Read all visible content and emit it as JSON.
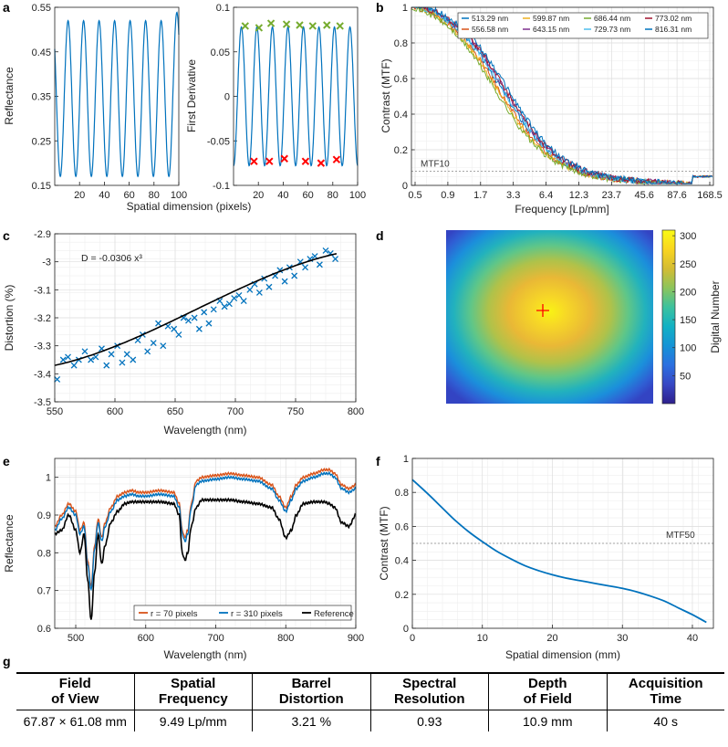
{
  "panel_labels": {
    "a": "a",
    "b": "b",
    "c": "c",
    "d": "d",
    "e": "e",
    "f": "f",
    "g": "g"
  },
  "colors": {
    "blue": "#0072BD",
    "orange": "#D95319",
    "green": "#77AC30",
    "red": "#FF0000",
    "black": "#000000"
  },
  "chart_data": [
    {
      "id": "a1",
      "type": "line",
      "xlabel": "Spatial dimension (pixels)",
      "ylabel": "Reflectance",
      "xlim": [
        0,
        100
      ],
      "ylim": [
        0.15,
        0.55
      ],
      "xticks": [
        20,
        40,
        60,
        80,
        100
      ],
      "yticks": [
        0.15,
        0.25,
        0.35,
        0.45,
        0.55
      ],
      "ytick_labels": [
        "0.15",
        "0.25",
        "0.35",
        "0.45",
        "0.55"
      ],
      "series": [
        {
          "name": "Reflectance",
          "color": "#0072BD",
          "period": 12.5,
          "min": 0.17,
          "max": 0.52
        }
      ]
    },
    {
      "id": "a2",
      "type": "scatter",
      "ylabel": "First Derivative",
      "xlim": [
        0,
        100
      ],
      "ylim": [
        -0.1,
        0.1
      ],
      "xticks": [
        20,
        40,
        60,
        80,
        100
      ],
      "yticks": [
        -0.1,
        -0.05,
        0,
        0.05,
        0.1
      ],
      "ytick_labels": [
        "-0.1",
        "-0.05",
        "0",
        "0.05",
        "0.1"
      ],
      "maxima_x": [
        9.4,
        20.5,
        30.2,
        42.7,
        53.3,
        63.8,
        75.2,
        85.8
      ],
      "maxima_y": [
        0.079,
        0.077,
        0.082,
        0.081,
        0.08,
        0.079,
        0.08,
        0.079
      ],
      "minima_x": [
        16.5,
        28.9,
        41.0,
        58.0,
        70.5,
        83.0
      ],
      "minima_y": [
        -0.073,
        -0.073,
        -0.07,
        -0.073,
        -0.075,
        -0.071
      ],
      "period": 12.5
    },
    {
      "id": "b",
      "type": "line",
      "xlabel": "Frequency [Lp/mm]",
      "ylabel": "Contrast (MTF)",
      "ylim": [
        0,
        1
      ],
      "yticks": [
        0,
        0.2,
        0.4,
        0.6,
        0.8,
        1
      ],
      "ytick_labels": [
        "0",
        "0.2",
        "0.4",
        "0.6",
        "0.8",
        "1"
      ],
      "xtick_labels": [
        "0.5",
        "0.9",
        "1.7",
        "3.3",
        "6.4",
        "12.3",
        "23.7",
        "45.6",
        "87.6",
        "168.5"
      ],
      "threshold": {
        "label": "MTF10",
        "value": 0.08
      },
      "legend": [
        "513.29 nm",
        "556.58 nm",
        "599.87 nm",
        "643.15 nm",
        "686.44 nm",
        "729.73 nm",
        "773.02 nm",
        "816.31 nm"
      ],
      "legend_colors": [
        "#0072BD",
        "#D95319",
        "#EDB120",
        "#7E2F8E",
        "#77AC30",
        "#4DBEEE",
        "#A2142F",
        "#0072BD"
      ],
      "curve_offsets": [
        0.0,
        -0.03,
        -0.04,
        0.02,
        -0.06,
        0.01,
        0.03,
        0.05
      ]
    },
    {
      "id": "c",
      "type": "scatter",
      "xlabel": "Wavelength (nm)",
      "ylabel": "Distortion (%)",
      "xlim": [
        550,
        800
      ],
      "ylim": [
        -3.5,
        -2.9
      ],
      "xticks": [
        550,
        600,
        650,
        700,
        750,
        800
      ],
      "yticks": [
        -3.5,
        -3.4,
        -3.3,
        -3.2,
        -3.1,
        -3,
        -2.9
      ],
      "ytick_labels": [
        "-3.5",
        "-3.4",
        "-3.3",
        "-3.2",
        "-3.1",
        "-3",
        "-2.9"
      ],
      "annotation": "D = -0.0306 x³",
      "points_x": [
        552,
        557,
        561,
        566,
        570,
        575,
        580,
        584,
        589,
        593,
        597,
        602,
        606,
        610,
        615,
        619,
        623,
        627,
        632,
        636,
        640,
        644,
        649,
        653,
        657,
        661,
        666,
        670,
        674,
        678,
        682,
        687,
        691,
        695,
        699,
        703,
        707,
        712,
        716,
        720,
        724,
        728,
        733,
        737,
        741,
        745,
        749,
        754,
        758,
        762,
        766,
        770,
        775,
        779,
        783
      ],
      "points_y": [
        -3.42,
        -3.35,
        -3.34,
        -3.37,
        -3.35,
        -3.32,
        -3.35,
        -3.34,
        -3.31,
        -3.37,
        -3.33,
        -3.3,
        -3.36,
        -3.33,
        -3.35,
        -3.28,
        -3.26,
        -3.32,
        -3.29,
        -3.22,
        -3.3,
        -3.23,
        -3.24,
        -3.26,
        -3.2,
        -3.21,
        -3.2,
        -3.24,
        -3.18,
        -3.22,
        -3.17,
        -3.14,
        -3.16,
        -3.15,
        -3.13,
        -3.12,
        -3.14,
        -3.1,
        -3.08,
        -3.11,
        -3.06,
        -3.09,
        -3.05,
        -3.03,
        -3.07,
        -3.02,
        -3.05,
        -3.0,
        -3.02,
        -2.99,
        -2.98,
        -3.01,
        -2.96,
        -2.97,
        -2.99
      ],
      "fit": {
        "x0": 550,
        "y0": -3.37,
        "x1": 785,
        "y1": -2.97
      }
    },
    {
      "id": "d",
      "type": "heatmap",
      "colorbar_label": "Digital Number",
      "clim": [
        0,
        310
      ],
      "colorbar_ticks": [
        50,
        100,
        150,
        200,
        250,
        300
      ],
      "peak_value": 300,
      "edge_value": 10,
      "center_marker": "+"
    },
    {
      "id": "e",
      "type": "line",
      "xlabel": "Wavelength (nm)",
      "ylabel": "Reflectance",
      "xlim": [
        470,
        900
      ],
      "ylim": [
        0.6,
        1.05
      ],
      "xticks": [
        500,
        600,
        700,
        800,
        900
      ],
      "yticks": [
        0.6,
        0.7,
        0.8,
        0.9,
        1
      ],
      "ytick_labels": [
        "0.6",
        "0.7",
        "0.8",
        "0.9",
        "1"
      ],
      "legend": [
        "r = 70 pixels",
        "r = 310 pixels",
        "Reference"
      ],
      "legend_colors": [
        "#D95319",
        "#0072BD",
        "#000000"
      ],
      "anchors_x": [
        470,
        480,
        490,
        500,
        506,
        512,
        517,
        522,
        527,
        532,
        537,
        542,
        550,
        560,
        570,
        580,
        590,
        600,
        620,
        640,
        648,
        652,
        656,
        660,
        665,
        672,
        680,
        700,
        720,
        740,
        760,
        780,
        790,
        800,
        808,
        815,
        825,
        840,
        855,
        862,
        870,
        880,
        890,
        900
      ],
      "ref_y": [
        0.85,
        0.86,
        0.9,
        0.86,
        0.8,
        0.85,
        0.73,
        0.62,
        0.75,
        0.85,
        0.77,
        0.82,
        0.88,
        0.91,
        0.93,
        0.935,
        0.935,
        0.935,
        0.935,
        0.93,
        0.9,
        0.8,
        0.78,
        0.8,
        0.87,
        0.92,
        0.94,
        0.94,
        0.94,
        0.935,
        0.93,
        0.92,
        0.89,
        0.84,
        0.86,
        0.9,
        0.93,
        0.935,
        0.935,
        0.93,
        0.92,
        0.88,
        0.87,
        0.9
      ],
      "r70_y": [
        0.87,
        0.9,
        0.93,
        0.91,
        0.86,
        0.88,
        0.78,
        0.71,
        0.82,
        0.89,
        0.84,
        0.88,
        0.92,
        0.95,
        0.96,
        0.965,
        0.96,
        0.96,
        0.965,
        0.96,
        0.93,
        0.86,
        0.84,
        0.86,
        0.93,
        0.99,
        1.0,
        1.005,
        1.01,
        1.005,
        1.0,
        0.98,
        0.95,
        0.92,
        0.95,
        0.98,
        1.0,
        1.01,
        1.02,
        1.02,
        1.01,
        0.98,
        0.97,
        0.98
      ],
      "r310_offset": -0.01
    },
    {
      "id": "f",
      "type": "line",
      "xlabel": "Spatial dimension (mm)",
      "ylabel": "Contrast (MTF)",
      "xlim": [
        0,
        43
      ],
      "ylim": [
        0,
        1
      ],
      "xticks": [
        0,
        10,
        20,
        30,
        40
      ],
      "yticks": [
        0,
        0.2,
        0.4,
        0.6,
        0.8,
        1
      ],
      "ytick_labels": [
        "0",
        "0.2",
        "0.4",
        "0.6",
        "0.8",
        "1"
      ],
      "threshold": {
        "label": "MTF50",
        "value": 0.5
      },
      "x": [
        0,
        2,
        4,
        6,
        8,
        10,
        12,
        14,
        16,
        18,
        20,
        22,
        24,
        26,
        28,
        30,
        32,
        34,
        36,
        38,
        40,
        42
      ],
      "y": [
        0.875,
        0.8,
        0.72,
        0.64,
        0.57,
        0.51,
        0.455,
        0.41,
        0.37,
        0.34,
        0.315,
        0.295,
        0.28,
        0.265,
        0.25,
        0.235,
        0.215,
        0.19,
        0.16,
        0.12,
        0.08,
        0.035
      ]
    }
  ],
  "table": {
    "headers": [
      [
        "Field",
        "of View"
      ],
      [
        "Spatial",
        "Frequency"
      ],
      [
        "Barrel",
        "Distortion"
      ],
      [
        "Spectral",
        "Resolution"
      ],
      [
        "Depth",
        "of Field"
      ],
      [
        "Acquisition",
        "Time"
      ]
    ],
    "values": [
      "67.87 × 61.08 mm",
      "9.49 Lp/mm",
      "3.21 %",
      "0.93",
      "10.9 mm",
      "40 s"
    ]
  }
}
